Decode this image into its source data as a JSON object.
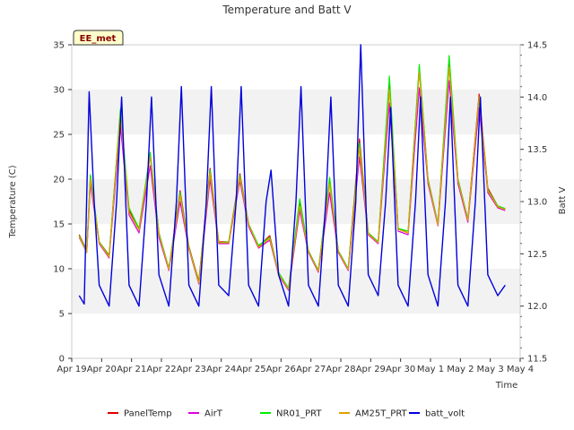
{
  "chart_data": {
    "type": "line",
    "title": "Temperature and Batt V",
    "xlabel": "Time",
    "ylabel": "Temperature (C)",
    "y2label": "Batt V",
    "station_badge": "EE_met",
    "xlim": [
      "2025-04-19",
      "2025-05-04"
    ],
    "ylim": [
      0,
      35
    ],
    "y2lim": [
      11.5,
      14.5
    ],
    "x_ticks": [
      "Apr 19",
      "Apr 20",
      "Apr 21",
      "Apr 22",
      "Apr 23",
      "Apr 24",
      "Apr 25",
      "Apr 26",
      "Apr 27",
      "Apr 28",
      "Apr 29",
      "Apr 30",
      "May 1",
      "May 2",
      "May 3",
      "May 4"
    ],
    "y_ticks": [
      0,
      5,
      10,
      15,
      20,
      25,
      30,
      35
    ],
    "y2_ticks": [
      "11.5",
      "12.0",
      "12.5",
      "13.0",
      "13.5",
      "14.0",
      "14.5"
    ],
    "grid": "horizontal bands",
    "legend_position": "bottom",
    "temperature_x": [
      "2025-04-19 06:00",
      "2025-04-19 12:00",
      "2025-04-19 15:00",
      "2025-04-19 22:00",
      "2025-04-20 06:00",
      "2025-04-20 15:00",
      "2025-04-20 22:00",
      "2025-04-21 06:00",
      "2025-04-21 15:00",
      "2025-04-21 22:00",
      "2025-04-22 06:00",
      "2025-04-22 15:00",
      "2025-04-22 22:00",
      "2025-04-23 06:00",
      "2025-04-23 15:00",
      "2025-04-23 22:00",
      "2025-04-24 06:00",
      "2025-04-24 15:00",
      "2025-04-24 22:00",
      "2025-04-25 06:00",
      "2025-04-25 15:00",
      "2025-04-25 22:00",
      "2025-04-26 06:00",
      "2025-04-26 15:00",
      "2025-04-26 22:00",
      "2025-04-27 06:00",
      "2025-04-27 15:00",
      "2025-04-27 22:00",
      "2025-04-28 06:00",
      "2025-04-28 15:00",
      "2025-04-28 22:00",
      "2025-04-29 06:00",
      "2025-04-29 15:00",
      "2025-04-29 22:00",
      "2025-04-30 06:00",
      "2025-04-30 15:00",
      "2025-04-30 22:00",
      "2025-05-01 06:00",
      "2025-05-01 15:00",
      "2025-05-01 22:00",
      "2025-05-02 06:00",
      "2025-05-02 15:00",
      "2025-05-02 22:00",
      "2025-05-03 06:00",
      "2025-05-03 12:00"
    ],
    "series": [
      {
        "name": "PanelTemp",
        "color": "#dd0000",
        "values": [
          13.8,
          12.0,
          20.3,
          13.0,
          11.5,
          27.5,
          16.5,
          14.5,
          22.8,
          14.0,
          10.0,
          18.7,
          12.5,
          8.6,
          21.2,
          13.0,
          13.0,
          20.6,
          15.0,
          12.5,
          13.7,
          9.5,
          7.8,
          17.5,
          12.0,
          9.8,
          20.0,
          12.0,
          10.0,
          24.5,
          14.0,
          13.0,
          30.5,
          14.5,
          14.0,
          32.5,
          20.0,
          15.0,
          33.0,
          20.0,
          15.5,
          29.5,
          19.0,
          17.0,
          16.7
        ]
      },
      {
        "name": "AirT",
        "color": "#dd00dd",
        "values": [
          13.5,
          11.8,
          19.5,
          12.8,
          11.2,
          26.0,
          16.0,
          14.0,
          21.5,
          13.5,
          9.8,
          17.5,
          12.2,
          8.3,
          20.0,
          12.8,
          12.8,
          19.8,
          14.7,
          12.3,
          13.2,
          9.3,
          7.6,
          16.5,
          11.8,
          9.6,
          18.5,
          11.8,
          9.8,
          22.5,
          13.8,
          12.8,
          28.5,
          14.2,
          13.8,
          30.2,
          19.5,
          14.8,
          31.0,
          19.5,
          15.2,
          28.0,
          18.5,
          16.8,
          16.5
        ]
      },
      {
        "name": "NR01_PRT",
        "color": "#00ee00",
        "values": [
          13.7,
          11.9,
          20.5,
          13.0,
          11.4,
          27.8,
          16.8,
          14.5,
          23.0,
          14.0,
          10.0,
          18.5,
          12.4,
          8.5,
          21.0,
          12.9,
          13.0,
          20.4,
          15.0,
          12.6,
          13.5,
          9.6,
          7.8,
          17.8,
          12.0,
          9.8,
          20.2,
          12.0,
          10.0,
          24.0,
          14.0,
          13.0,
          31.5,
          14.5,
          14.2,
          32.8,
          20.0,
          15.0,
          33.8,
          20.0,
          15.5,
          29.0,
          18.8,
          17.0,
          16.7
        ]
      },
      {
        "name": "AM25T_PRT",
        "color": "#e0a000",
        "values": [
          13.6,
          11.8,
          20.0,
          12.9,
          11.3,
          27.2,
          16.3,
          14.3,
          22.5,
          13.8,
          9.9,
          18.2,
          12.3,
          8.4,
          20.7,
          12.9,
          12.9,
          20.2,
          14.9,
          12.4,
          13.4,
          9.4,
          7.7,
          17.0,
          11.9,
          9.7,
          19.5,
          11.9,
          9.9,
          23.5,
          13.9,
          12.9,
          30.0,
          14.4,
          14.0,
          32.0,
          19.8,
          14.9,
          32.5,
          19.8,
          15.4,
          29.2,
          18.7,
          16.9,
          16.6
        ]
      }
    ],
    "batt_volt": {
      "name": "batt_volt",
      "color": "#0000dd",
      "x": [
        "2025-04-19 06:00",
        "2025-04-19 10:00",
        "2025-04-19 14:00",
        "2025-04-19 18:00",
        "2025-04-19 22:00",
        "2025-04-20 06:00",
        "2025-04-20 12:00",
        "2025-04-20 16:00",
        "2025-04-20 22:00",
        "2025-04-21 06:00",
        "2025-04-21 12:00",
        "2025-04-21 16:00",
        "2025-04-21 22:00",
        "2025-04-22 06:00",
        "2025-04-22 12:00",
        "2025-04-22 16:00",
        "2025-04-22 22:00",
        "2025-04-23 06:00",
        "2025-04-23 12:00",
        "2025-04-23 16:00",
        "2025-04-23 22:00",
        "2025-04-24 06:00",
        "2025-04-24 12:00",
        "2025-04-24 16:00",
        "2025-04-24 22:00",
        "2025-04-25 06:00",
        "2025-04-25 12:00",
        "2025-04-25 16:00",
        "2025-04-25 22:00",
        "2025-04-26 06:00",
        "2025-04-26 12:00",
        "2025-04-26 16:00",
        "2025-04-26 22:00",
        "2025-04-27 06:00",
        "2025-04-27 12:00",
        "2025-04-27 16:00",
        "2025-04-27 22:00",
        "2025-04-28 06:00",
        "2025-04-28 12:00",
        "2025-04-28 16:00",
        "2025-04-28 22:00",
        "2025-04-29 06:00",
        "2025-04-29 12:00",
        "2025-04-29 16:00",
        "2025-04-29 22:00",
        "2025-04-30 06:00",
        "2025-04-30 12:00",
        "2025-04-30 16:00",
        "2025-04-30 22:00",
        "2025-05-01 06:00",
        "2025-05-01 12:00",
        "2025-05-01 16:00",
        "2025-05-01 22:00",
        "2025-05-02 06:00",
        "2025-05-02 12:00",
        "2025-05-02 16:00",
        "2025-05-02 22:00",
        "2025-05-03 06:00",
        "2025-05-03 12:00"
      ],
      "values": [
        12.1,
        12.02,
        14.05,
        13.0,
        12.2,
        12.0,
        13.0,
        14.0,
        12.2,
        12.0,
        13.0,
        14.0,
        12.3,
        12.0,
        13.0,
        14.1,
        12.2,
        12.0,
        13.0,
        14.1,
        12.2,
        12.1,
        13.0,
        14.1,
        12.2,
        12.0,
        13.0,
        13.3,
        12.3,
        12.0,
        13.0,
        14.1,
        12.2,
        12.0,
        13.0,
        14.0,
        12.2,
        12.0,
        13.0,
        14.5,
        12.3,
        12.1,
        13.0,
        13.9,
        12.2,
        12.0,
        13.0,
        14.0,
        12.3,
        12.0,
        13.0,
        14.0,
        12.2,
        12.0,
        13.0,
        14.0,
        12.3,
        12.1,
        12.2
      ]
    }
  }
}
